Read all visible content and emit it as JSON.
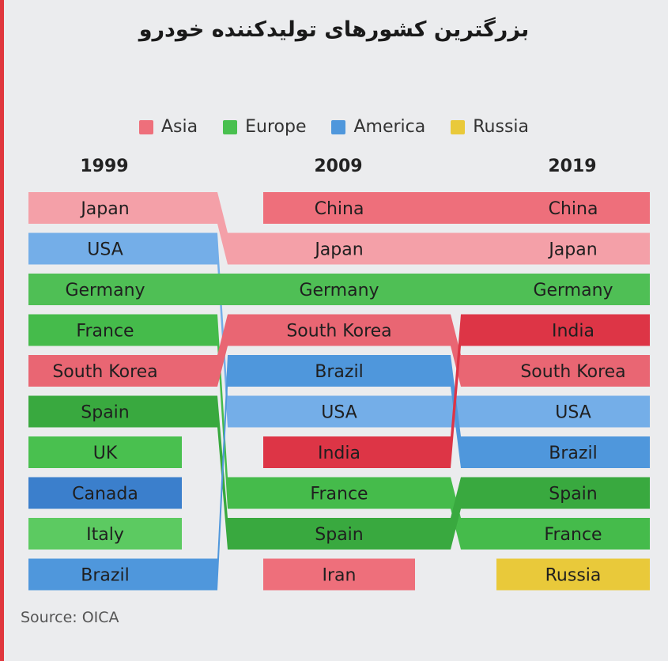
{
  "title": "بزرگترین کشورهای تولیدکننده خودرو",
  "source": "Source: OICA",
  "legend": [
    {
      "label": "Asia",
      "color": "#ee6f7b"
    },
    {
      "label": "Europe",
      "color": "#49c04f"
    },
    {
      "label": "America",
      "color": "#4f97dc"
    },
    {
      "label": "Russia",
      "color": "#e9c93a"
    }
  ],
  "years": [
    "1999",
    "2009",
    "2019"
  ],
  "chart_data": {
    "type": "bump",
    "title": "بزرگترین کشورهای تولیدکننده خودرو",
    "columns": [
      "1999",
      "2009",
      "2019"
    ],
    "rankings": {
      "1999": [
        "Japan",
        "USA",
        "Germany",
        "France",
        "South Korea",
        "Spain",
        "UK",
        "Canada",
        "Italy",
        "Brazil"
      ],
      "2009": [
        "China",
        "Japan",
        "Germany",
        "South Korea",
        "Brazil",
        "USA",
        "India",
        "France",
        "Spain",
        "Iran"
      ],
      "2019": [
        "China",
        "Japan",
        "Germany",
        "India",
        "South Korea",
        "USA",
        "Brazil",
        "Spain",
        "France",
        "Russia"
      ]
    },
    "region_colors": {
      "Asia": "#ee6f7b",
      "Europe": "#49c04f",
      "America": "#4f97dc",
      "Russia": "#e9c93a"
    },
    "countries": [
      {
        "name": "Japan",
        "region": "Asia",
        "color": "#f4a0a8",
        "ranks": [
          1,
          2,
          2
        ]
      },
      {
        "name": "USA",
        "region": "America",
        "color": "#74aee8",
        "ranks": [
          2,
          6,
          6
        ]
      },
      {
        "name": "Germany",
        "region": "Europe",
        "color": "#4fbf55",
        "ranks": [
          3,
          3,
          3
        ]
      },
      {
        "name": "France",
        "region": "Europe",
        "color": "#45bb4b",
        "ranks": [
          4,
          8,
          9
        ]
      },
      {
        "name": "South Korea",
        "region": "Asia",
        "color": "#e96673",
        "ranks": [
          5,
          4,
          5
        ]
      },
      {
        "name": "Spain",
        "region": "Europe",
        "color": "#39a93f",
        "ranks": [
          6,
          9,
          8
        ]
      },
      {
        "name": "UK",
        "region": "Europe",
        "color": "#49c04f",
        "ranks": [
          7,
          null,
          null
        ]
      },
      {
        "name": "Canada",
        "region": "America",
        "color": "#3b7fcc",
        "ranks": [
          8,
          null,
          null
        ]
      },
      {
        "name": "Italy",
        "region": "Europe",
        "color": "#5cca61",
        "ranks": [
          9,
          null,
          null
        ]
      },
      {
        "name": "Brazil",
        "region": "America",
        "color": "#4f97dc",
        "ranks": [
          10,
          5,
          7
        ]
      },
      {
        "name": "China",
        "region": "Asia",
        "color": "#ee6f7b",
        "ranks": [
          null,
          1,
          1
        ]
      },
      {
        "name": "India",
        "region": "Asia",
        "color": "#dd3546",
        "ranks": [
          null,
          7,
          4
        ]
      },
      {
        "name": "Iran",
        "region": "Asia",
        "color": "#ee6f7b",
        "ranks": [
          null,
          10,
          null
        ]
      },
      {
        "name": "Russia",
        "region": "Russia",
        "color": "#e9c93a",
        "ranks": [
          null,
          null,
          10
        ]
      }
    ]
  }
}
